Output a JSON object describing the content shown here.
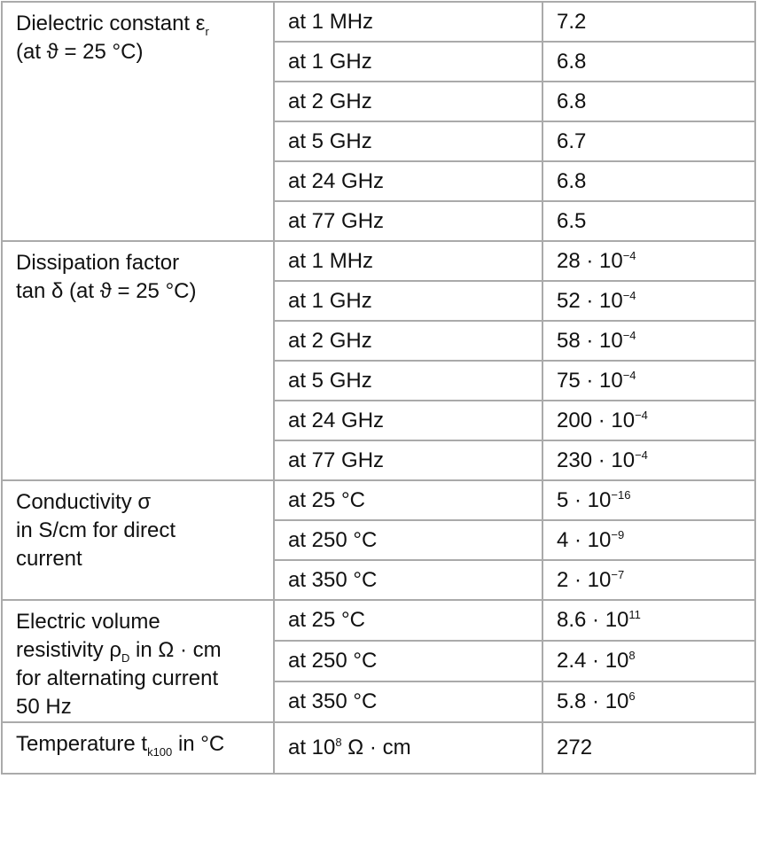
{
  "table": {
    "groups": [
      {
        "property": [
          [
            "Dielectric constant ε",
            {
              "sub": "r"
            }
          ],
          "(at ϑ = 25 °C)"
        ],
        "rows": [
          {
            "condition": [
              "at 1 MHz"
            ],
            "value": [
              "7.2"
            ]
          },
          {
            "condition": [
              "at 1 GHz"
            ],
            "value": [
              "6.8"
            ]
          },
          {
            "condition": [
              "at 2 GHz"
            ],
            "value": [
              "6.8"
            ]
          },
          {
            "condition": [
              "at 5 GHz"
            ],
            "value": [
              "6.7"
            ]
          },
          {
            "condition": [
              "at 24 GHz"
            ],
            "value": [
              "6.8"
            ]
          },
          {
            "condition": [
              "at 77 GHz"
            ],
            "value": [
              "6.5"
            ]
          }
        ]
      },
      {
        "property": [
          "Dissipation factor",
          "tan δ (at ϑ = 25 °C)"
        ],
        "rows": [
          {
            "condition": [
              "at 1 MHz"
            ],
            "value": [
              "28 · 10",
              {
                "sup": "−4"
              }
            ]
          },
          {
            "condition": [
              "at 1 GHz"
            ],
            "value": [
              "52 · 10",
              {
                "sup": "−4"
              }
            ]
          },
          {
            "condition": [
              "at 2 GHz"
            ],
            "value": [
              "58 · 10",
              {
                "sup": "−4"
              }
            ]
          },
          {
            "condition": [
              "at 5 GHz"
            ],
            "value": [
              "75 · 10",
              {
                "sup": "−4"
              }
            ]
          },
          {
            "condition": [
              "at 24 GHz"
            ],
            "value": [
              "200 · 10",
              {
                "sup": "−4"
              }
            ]
          },
          {
            "condition": [
              "at 77 GHz"
            ],
            "value": [
              "230 · 10",
              {
                "sup": "−4"
              }
            ]
          }
        ]
      },
      {
        "property": [
          "Conductivity σ",
          "in S/cm for direct",
          "current"
        ],
        "rows": [
          {
            "condition": [
              "at 25 °C"
            ],
            "value": [
              "5 · 10",
              {
                "sup": "−16"
              }
            ]
          },
          {
            "condition": [
              "at 250 °C"
            ],
            "value": [
              "4 · 10",
              {
                "sup": "−9"
              }
            ]
          },
          {
            "condition": [
              "at 350 °C"
            ],
            "value": [
              "2 · 10",
              {
                "sup": "−7"
              }
            ]
          }
        ]
      },
      {
        "property": [
          "Electric volume",
          [
            "resistivity ρ",
            {
              "sub": "D"
            },
            " in Ω · cm"
          ],
          "for alternating current",
          "50 Hz"
        ],
        "rows": [
          {
            "condition": [
              "at 25 °C"
            ],
            "value": [
              "8.6 · 10",
              {
                "sup": "11"
              }
            ]
          },
          {
            "condition": [
              "at 250 °C"
            ],
            "value": [
              "2.4 · 10",
              {
                "sup": "8"
              }
            ]
          },
          {
            "condition": [
              "at 350 °C"
            ],
            "value": [
              "5.8 · 10",
              {
                "sup": "6"
              }
            ]
          }
        ]
      },
      {
        "property": [
          [
            "Temperature t",
            {
              "sub": "k100"
            },
            " in °C"
          ]
        ],
        "rows": [
          {
            "condition": [
              "at 10",
              {
                "sup": "8"
              },
              " Ω · cm"
            ],
            "value": [
              "272"
            ]
          }
        ]
      }
    ]
  }
}
